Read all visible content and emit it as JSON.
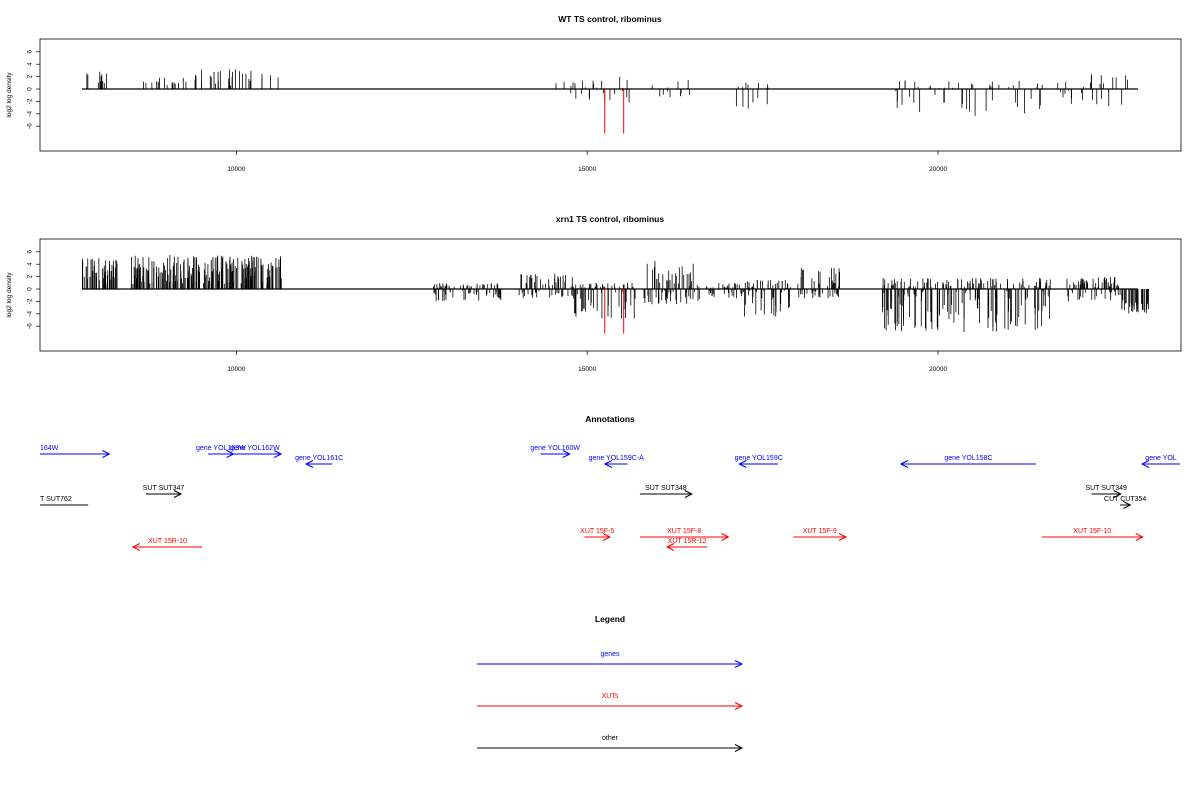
{
  "panels": [
    {
      "title": "WT TS control, ribominus",
      "ylabel": "log2 log density",
      "yticks": [
        "6",
        "4",
        "2",
        "0",
        "-2",
        "-4",
        "-6"
      ],
      "xticks": [
        "10000",
        "15000",
        "20000"
      ]
    },
    {
      "title": "xrn1 TS control, ribominus",
      "ylabel": "log2 log density",
      "yticks": [
        "6",
        "4",
        "2",
        "0",
        "-2",
        "-4",
        "-6"
      ],
      "xticks": [
        "10000",
        "15000",
        "20000"
      ]
    }
  ],
  "annotations_title": "Annotations",
  "legend_title": "Legend",
  "colors": {
    "genes": "#0000ff",
    "XUTs": "#ff0000",
    "other": "#000000",
    "density": "#000000",
    "highlight": "#ff0000"
  },
  "chart_data": [
    {
      "type": "bar",
      "title": "WT TS control, ribominus",
      "xlabel": "",
      "ylabel": "log2 log density",
      "xlim": [
        7500,
        23100
      ],
      "ylim": [
        -7.5,
        6
      ],
      "grid": false,
      "segments": [
        {
          "x_range": [
            7800,
            8200
          ],
          "y_range": [
            0.5,
            2.8
          ]
        },
        {
          "x_range": [
            8600,
            9300
          ],
          "y_range": [
            0.5,
            2
          ]
        },
        {
          "x_range": [
            9400,
            10600
          ],
          "y_range": [
            0.5,
            3.3
          ]
        },
        {
          "x_range": [
            14400,
            15600
          ],
          "y_range": [
            -2.5,
            2
          ]
        },
        {
          "x_range": [
            15900,
            16500
          ],
          "y_range": [
            -1.5,
            1.5
          ]
        },
        {
          "x_range": [
            17100,
            17700
          ],
          "y_range": [
            -3.5,
            1.2
          ]
        },
        {
          "x_range": [
            19300,
            21500
          ],
          "y_range": [
            -4.5,
            1.5
          ]
        },
        {
          "x_range": [
            21700,
            22800
          ],
          "y_range": [
            -3,
            2.5
          ]
        }
      ],
      "highlighted": [
        {
          "x": 15250,
          "y": -7.2
        },
        {
          "x": 15520,
          "y": -7.2
        }
      ]
    },
    {
      "type": "bar",
      "title": "xrn1 TS control, ribominus",
      "xlabel": "",
      "ylabel": "log2 log density",
      "xlim": [
        7500,
        23100
      ],
      "ylim": [
        -7.5,
        6
      ],
      "grid": false,
      "segments": [
        {
          "x_range": [
            7800,
            8300
          ],
          "y_range": [
            0.8,
            5
          ]
        },
        {
          "x_range": [
            8500,
            10700
          ],
          "y_range": [
            0.8,
            5.5
          ]
        },
        {
          "x_range": [
            12800,
            13800
          ],
          "y_range": [
            -2,
            1
          ]
        },
        {
          "x_range": [
            14000,
            14800
          ],
          "y_range": [
            -1.5,
            2.5
          ]
        },
        {
          "x_range": [
            14800,
            15700
          ],
          "y_range": [
            -5,
            1
          ]
        },
        {
          "x_range": [
            15800,
            16600
          ],
          "y_range": [
            -2.5,
            4.8
          ]
        },
        {
          "x_range": [
            16700,
            17200
          ],
          "y_range": [
            -1.5,
            1
          ]
        },
        {
          "x_range": [
            17200,
            17900
          ],
          "y_range": [
            -4.5,
            1.5
          ]
        },
        {
          "x_range": [
            18000,
            18600
          ],
          "y_range": [
            -1.5,
            3.5
          ]
        },
        {
          "x_range": [
            19200,
            21600
          ],
          "y_range": [
            -7,
            1.8
          ]
        },
        {
          "x_range": [
            21800,
            22600
          ],
          "y_range": [
            -2,
            2
          ]
        },
        {
          "x_range": [
            22600,
            23000
          ],
          "y_range": [
            -4,
            0
          ]
        }
      ],
      "highlighted": [
        {
          "x": 15250,
          "y": -7.2
        },
        {
          "x": 15520,
          "y": -7.2
        }
      ]
    }
  ],
  "annotation_features": [
    {
      "label": "164W",
      "type": "gene",
      "start": 7500,
      "end": 8450,
      "dir": "+",
      "row": 0
    },
    {
      "label": "gene YOL163W",
      "type": "gene",
      "start": 9800,
      "end": 10150,
      "dir": "+",
      "row": 0
    },
    {
      "label": "gene YOL162W",
      "type": "gene",
      "start": 10080,
      "end": 10800,
      "dir": "+",
      "row": 0
    },
    {
      "label": "gene YOL161C",
      "type": "gene",
      "start": 11140,
      "end": 11500,
      "dir": "-",
      "row": 1
    },
    {
      "label": "gene YOL160W",
      "type": "gene",
      "start": 14350,
      "end": 14750,
      "dir": "+",
      "row": 0
    },
    {
      "label": "gene YOL159C-A",
      "type": "gene",
      "start": 15230,
      "end": 15540,
      "dir": "-",
      "row": 1
    },
    {
      "label": "gene YOL159C",
      "type": "gene",
      "start": 17070,
      "end": 17600,
      "dir": "-",
      "row": 1
    },
    {
      "label": "gene YOL158C",
      "type": "gene",
      "start": 19280,
      "end": 21130,
      "dir": "-",
      "row": 1
    },
    {
      "label": "gene YOL",
      "type": "gene",
      "start": 22580,
      "end": 23100,
      "dir": "-",
      "row": 1
    },
    {
      "label": "T SUT762",
      "type": "other",
      "start": 7500,
      "end": 8160,
      "dir": "none",
      "row": 3
    },
    {
      "label": "SUT SUT347",
      "type": "other",
      "start": 8950,
      "end": 9430,
      "dir": "+",
      "row": 2
    },
    {
      "label": "SUT SUT348",
      "type": "other",
      "start": 15710,
      "end": 16420,
      "dir": "+",
      "row": 2
    },
    {
      "label": "SUT SUT349",
      "type": "other",
      "start": 21890,
      "end": 22290,
      "dir": "+",
      "row": 2
    },
    {
      "label": "CUT CUT354",
      "type": "other",
      "start": 22280,
      "end": 22420,
      "dir": "+",
      "row": 3
    },
    {
      "label": "XUT 15R-10",
      "type": "XUT",
      "start": 8770,
      "end": 9720,
      "dir": "-",
      "row": 5
    },
    {
      "label": "XUT 15F-5",
      "type": "XUT",
      "start": 14950,
      "end": 15300,
      "dir": "+",
      "row": 4
    },
    {
      "label": "XUT 15F-8",
      "type": "XUT",
      "start": 15710,
      "end": 16920,
      "dir": "+",
      "row": 4
    },
    {
      "label": "XUT 15R-12",
      "type": "XUT",
      "start": 16080,
      "end": 16630,
      "dir": "-",
      "row": 5
    },
    {
      "label": "XUT 15F-9",
      "type": "XUT",
      "start": 17810,
      "end": 18530,
      "dir": "+",
      "row": 4
    },
    {
      "label": "XUT 15F-10",
      "type": "XUT",
      "start": 21210,
      "end": 22590,
      "dir": "+",
      "row": 4
    }
  ],
  "legend": [
    {
      "label": "genes",
      "type": "gene"
    },
    {
      "label": "XUTs",
      "type": "XUT"
    },
    {
      "label": "other",
      "type": "other"
    }
  ]
}
